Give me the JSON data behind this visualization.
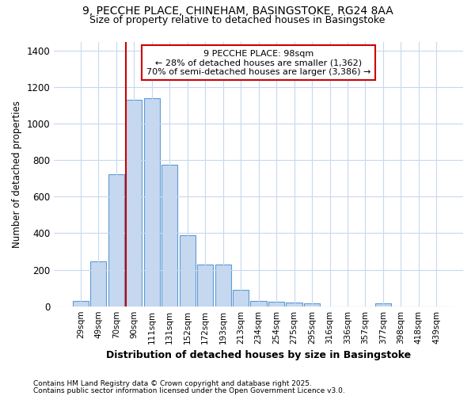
{
  "title1": "9, PECCHE PLACE, CHINEHAM, BASINGSTOKE, RG24 8AA",
  "title2": "Size of property relative to detached houses in Basingstoke",
  "xlabel": "Distribution of detached houses by size in Basingstoke",
  "ylabel": "Number of detached properties",
  "categories": [
    "29sqm",
    "49sqm",
    "70sqm",
    "90sqm",
    "111sqm",
    "131sqm",
    "152sqm",
    "172sqm",
    "193sqm",
    "213sqm",
    "234sqm",
    "254sqm",
    "275sqm",
    "295sqm",
    "316sqm",
    "336sqm",
    "357sqm",
    "377sqm",
    "398sqm",
    "418sqm",
    "439sqm"
  ],
  "values": [
    30,
    245,
    725,
    1130,
    1140,
    775,
    390,
    230,
    230,
    90,
    30,
    25,
    20,
    15,
    0,
    0,
    0,
    15,
    0,
    0,
    0
  ],
  "bar_color": "#c5d8f0",
  "bar_edge_color": "#5b9bd5",
  "vline_x_index": 3,
  "vline_color": "#cc0000",
  "annotation_title": "9 PECCHE PLACE: 98sqm",
  "annotation_line1": "← 28% of detached houses are smaller (1,362)",
  "annotation_line2": "70% of semi-detached houses are larger (3,386) →",
  "annotation_box_color": "#ffffff",
  "annotation_border_color": "#cc0000",
  "bg_color": "#ffffff",
  "plot_bg_color": "#ffffff",
  "footer1": "Contains HM Land Registry data © Crown copyright and database right 2025.",
  "footer2": "Contains public sector information licensed under the Open Government Licence v3.0.",
  "ylim": [
    0,
    1450
  ],
  "yticks": [
    0,
    200,
    400,
    600,
    800,
    1000,
    1200,
    1400
  ]
}
